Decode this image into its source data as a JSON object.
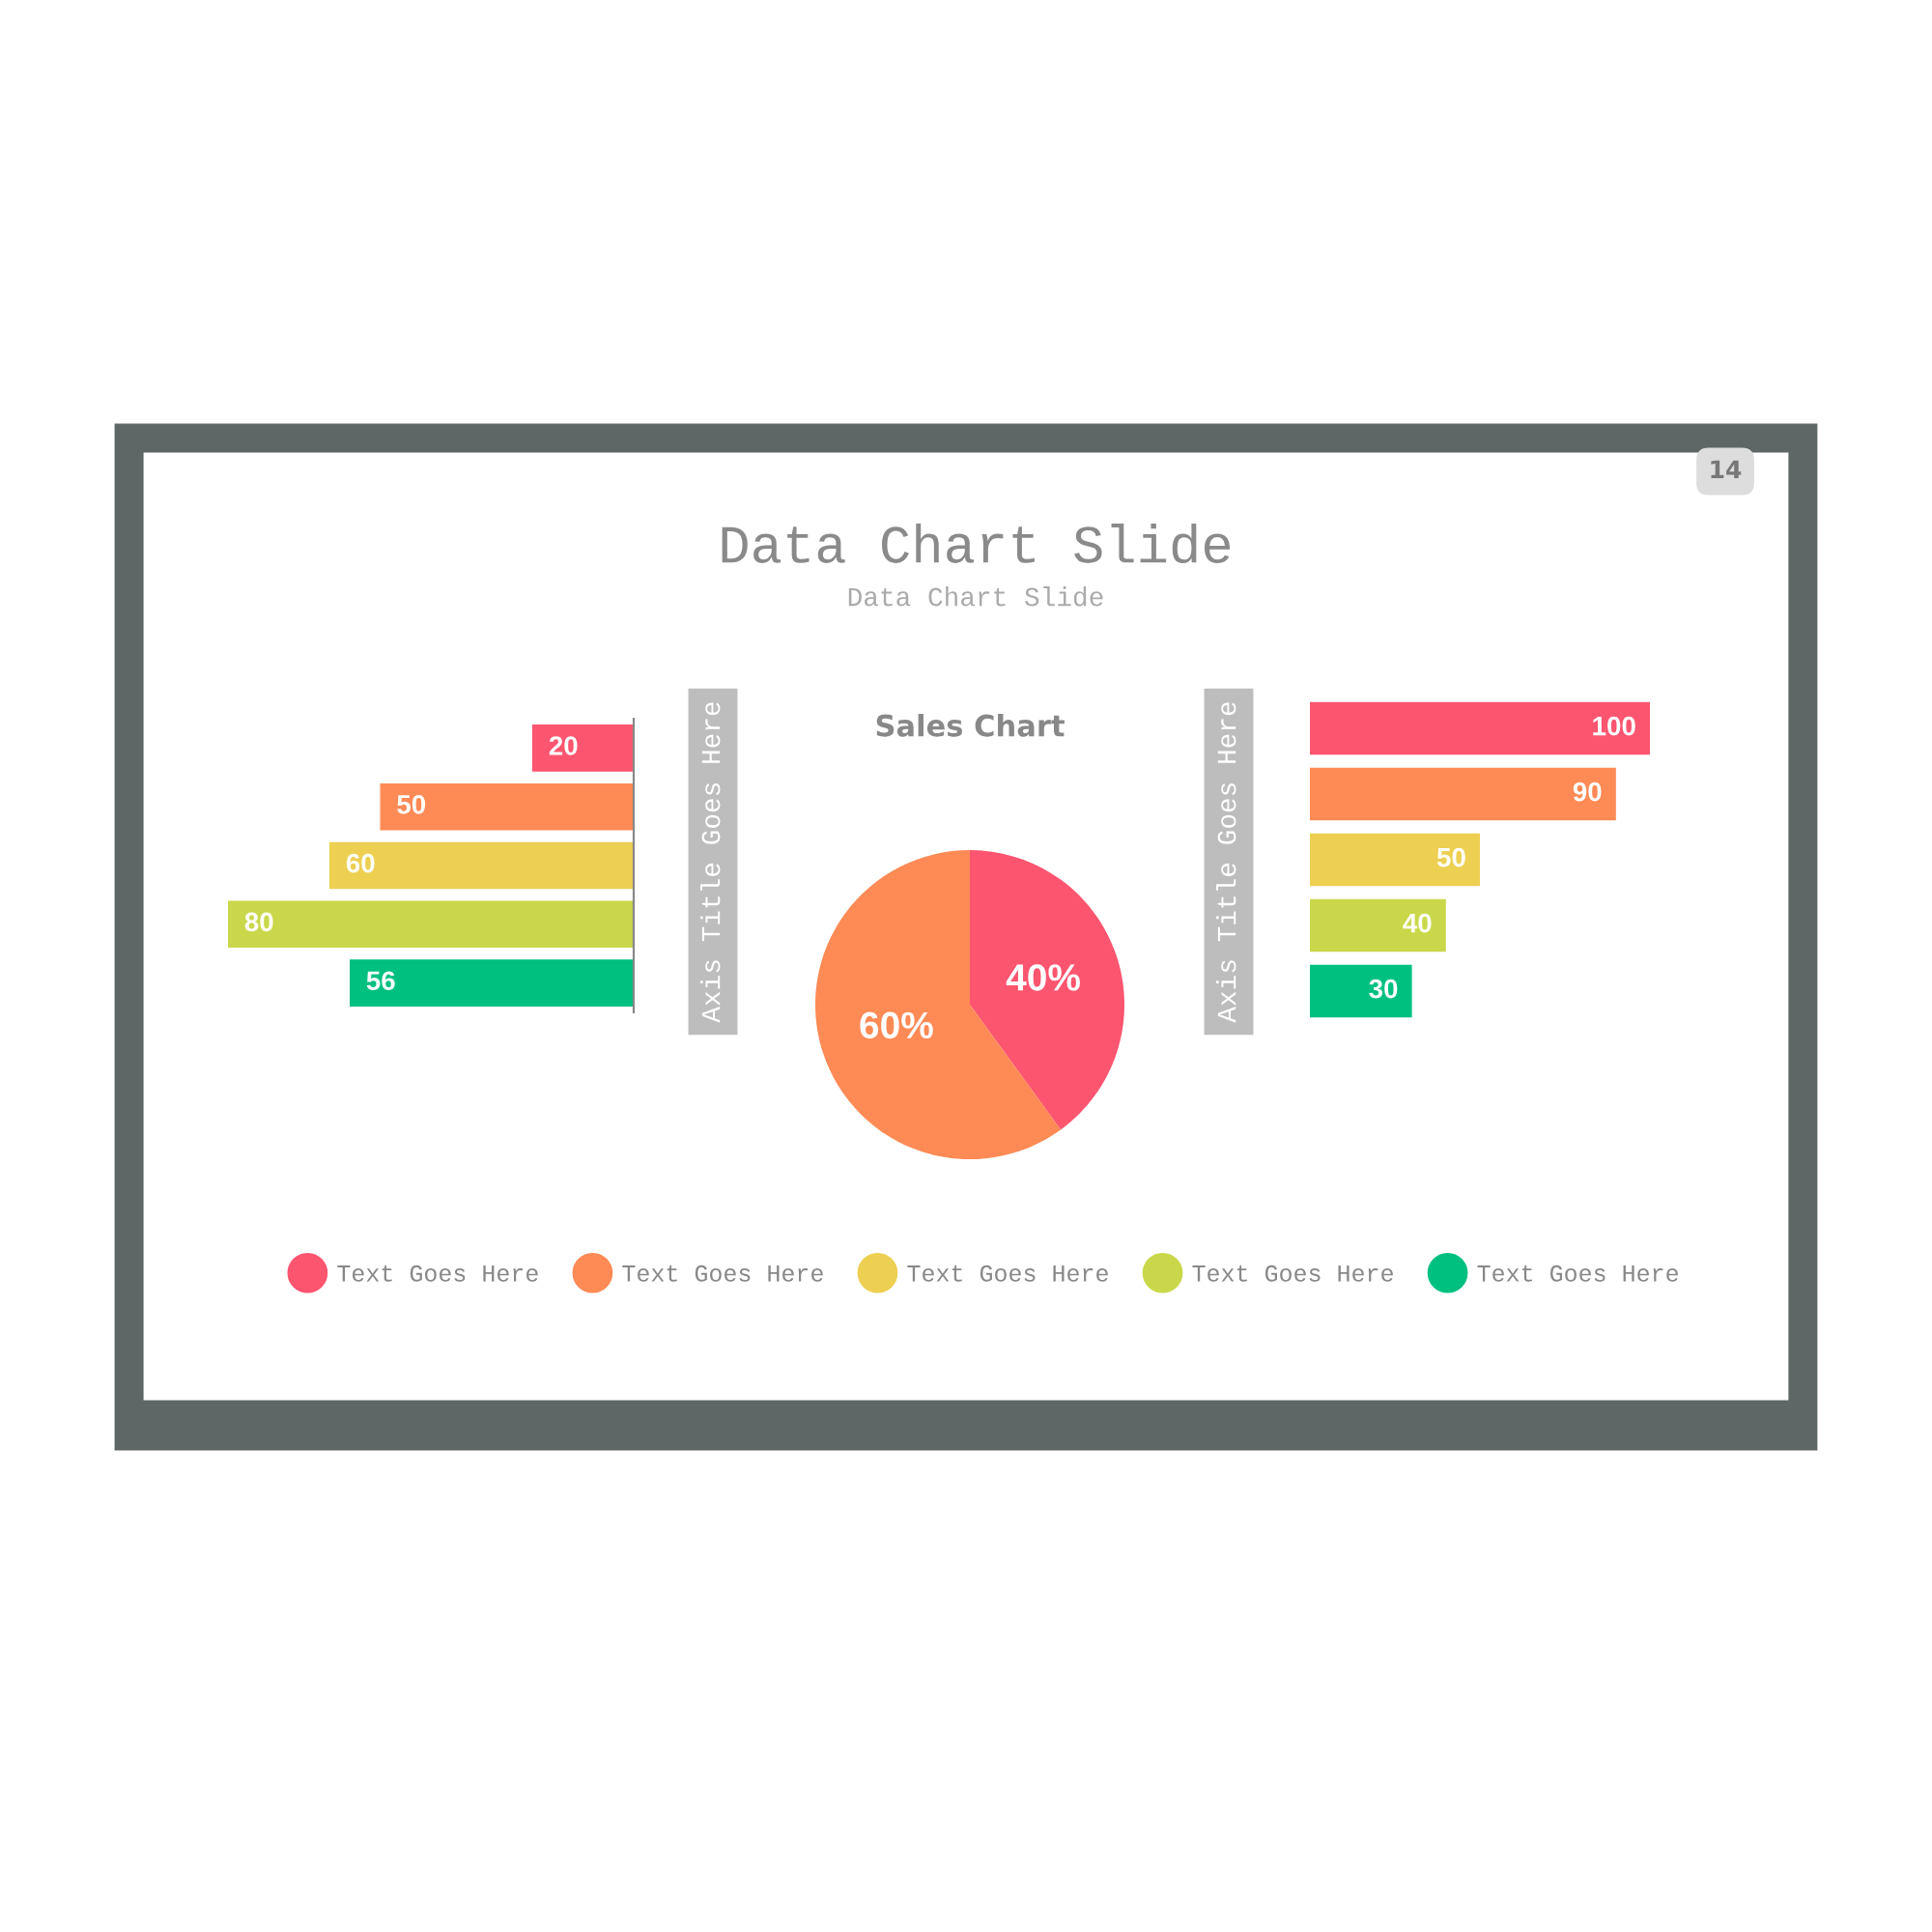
{
  "chart_data": [
    {
      "type": "other",
      "title": "Data Chart Slide",
      "subtitle": "Data Chart Slide",
      "annotations": [
        "14"
      ]
    },
    {
      "type": "bar",
      "orientation": "horizontal",
      "ylabel": "Axis Title Goes Here",
      "categories": [
        null
      ],
      "data_labels": true,
      "tick_labels": false,
      "legend": "bottom",
      "series": [
        {
          "name": "Text Goes Here",
          "color": "#fc5570",
          "values": [
            20
          ]
        },
        {
          "name": "Text Goes Here",
          "color": "#fe8a55",
          "values": [
            50
          ]
        },
        {
          "name": "Text Goes Here",
          "color": "#edcf52",
          "values": [
            60
          ]
        },
        {
          "name": "Text Goes Here",
          "color": "#c9d84a",
          "values": [
            80
          ]
        },
        {
          "name": "Text Goes Here",
          "color": "#00c07f",
          "values": [
            56
          ]
        }
      ]
    },
    {
      "type": "pie",
      "title": "Sales Chart",
      "categories": [
        null,
        null
      ],
      "values": [
        40,
        60
      ],
      "colors": [
        "#fc5570",
        "#fe8a55"
      ],
      "value_labels": [
        "40%",
        "60%"
      ]
    },
    {
      "type": "bar",
      "orientation": "horizontal",
      "ylabel": "Axis Title Goes Here",
      "categories": [
        null,
        null,
        null,
        null,
        null
      ],
      "values": [
        100,
        90,
        50,
        40,
        30
      ],
      "colors": [
        "#fc5570",
        "#fe8a55",
        "#edcf52",
        "#c9d84a",
        "#00c07f"
      ],
      "data_labels": true,
      "tick_labels": false
    }
  ]
}
